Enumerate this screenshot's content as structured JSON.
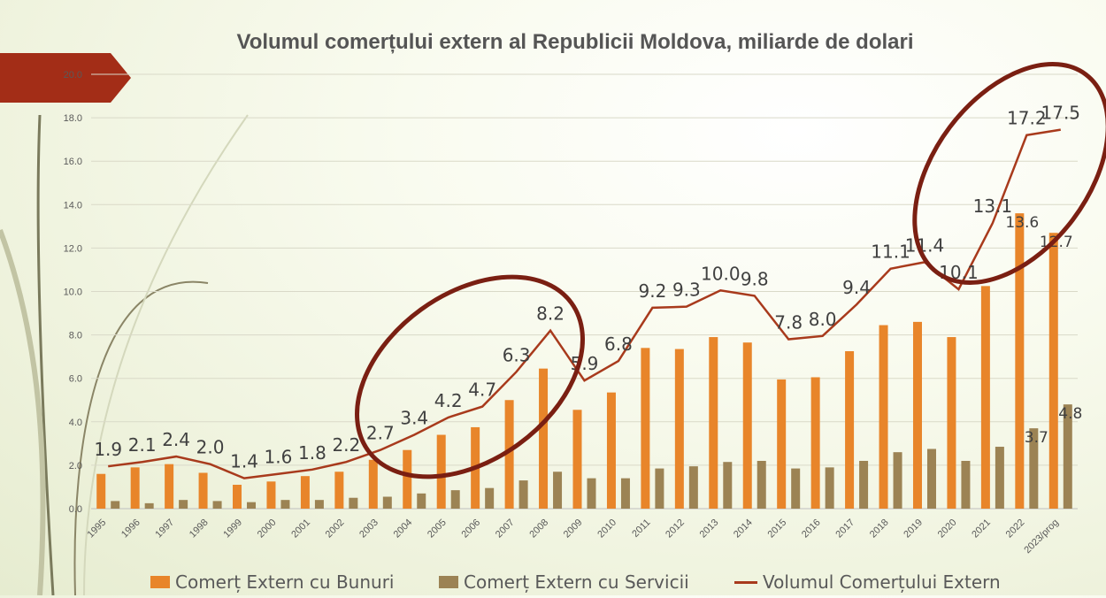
{
  "chart_data": {
    "type": "bar",
    "title": "Volumul comerțului extern al Republicii Moldova, miliarde de dolari",
    "categories": [
      "1995",
      "1996",
      "1997",
      "1998",
      "1999",
      "2000",
      "2001",
      "2002",
      "2003",
      "2004",
      "2005",
      "2006",
      "2007",
      "2008",
      "2009",
      "2010",
      "2011",
      "2012",
      "2013",
      "2014",
      "2015",
      "2016",
      "2017",
      "2018",
      "2019",
      "2020",
      "2021",
      "2022",
      "2023/prog"
    ],
    "ylim": [
      0,
      20
    ],
    "yticks": [
      "0.0",
      "2.0",
      "4.0",
      "6.0",
      "8.0",
      "10.0",
      "12.0",
      "14.0",
      "16.0",
      "18.0",
      "20.0"
    ],
    "grid": true,
    "legend_position": "bottom",
    "series": [
      {
        "name": "Comerț Extern cu Bunuri",
        "kind": "bar",
        "color": "#e8852a",
        "values": [
          1.6,
          1.9,
          2.05,
          1.65,
          1.1,
          1.25,
          1.5,
          1.7,
          2.25,
          2.7,
          3.4,
          3.75,
          5.0,
          6.45,
          4.55,
          5.35,
          7.4,
          7.35,
          7.9,
          7.65,
          5.95,
          6.05,
          7.25,
          8.45,
          8.6,
          7.9,
          10.25,
          13.6,
          12.7
        ],
        "labels": {
          "27": "13.6",
          "28": "12.7"
        }
      },
      {
        "name": "Comerț Extern cu Servicii",
        "kind": "bar",
        "color": "#9c8354",
        "values": [
          0.35,
          0.25,
          0.4,
          0.35,
          0.3,
          0.4,
          0.4,
          0.5,
          0.55,
          0.7,
          0.85,
          0.95,
          1.3,
          1.7,
          1.4,
          1.4,
          1.85,
          1.95,
          2.15,
          2.2,
          1.85,
          1.9,
          2.2,
          2.6,
          2.75,
          2.2,
          2.85,
          3.7,
          4.8
        ],
        "labels": {
          "27": "3.7",
          "28": "4.8"
        }
      },
      {
        "name": "Volumul Comerțului Extern",
        "kind": "line",
        "color": "#a83a1c",
        "values": [
          1.95,
          2.15,
          2.4,
          2.05,
          1.4,
          1.6,
          1.8,
          2.15,
          2.7,
          3.4,
          4.2,
          4.7,
          6.3,
          8.2,
          5.9,
          6.8,
          9.25,
          9.3,
          10.05,
          9.8,
          7.8,
          7.95,
          9.4,
          11.05,
          11.35,
          10.1,
          13.15,
          17.2,
          17.45
        ],
        "labels": [
          "1.9",
          "2.1",
          "2.4",
          "2.0",
          "1.4",
          "1.6",
          "1.8",
          "2.2",
          "2.7",
          "3.4",
          "4.2",
          "4.7",
          "6.3",
          "8.2",
          "5.9",
          "6.8",
          "9.2",
          "9.3",
          "10.0",
          "9.8",
          "7.8",
          "8.0",
          "9.4",
          "11.1",
          "11.4",
          "10.1",
          "13.1",
          "17.2",
          "17.5"
        ]
      }
    ]
  },
  "colors": {
    "ribbon": "#a32d17",
    "circle": "#7a1f12",
    "grid": "#d9d9c8",
    "tick_text": "#595959"
  }
}
